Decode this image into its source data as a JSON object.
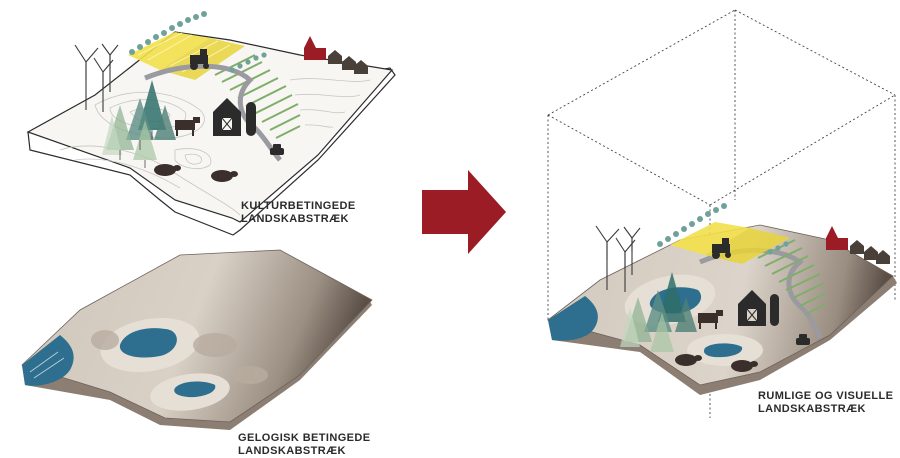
{
  "labels": {
    "cultural": [
      "KULTURBETINGEDE",
      "LANDSKABSTRÆK"
    ],
    "geological": [
      "GELOGISK BETINGEDE",
      "LANDSKABSTRÆK"
    ],
    "spatial": [
      "RUMLIGE OG VISUELLE",
      "LANDSKABSTRÆK"
    ]
  },
  "colors": {
    "arrow": "#9b1c24",
    "water": "#2e6e8e",
    "terrain_light": "#e4dcd2",
    "terrain_dark": "#5b5048",
    "field_yellow": "#f2e04a",
    "field_green": "#7fae6a",
    "road": "#9a9aa0",
    "church": "#9b1c24"
  },
  "icons": [
    "wind-turbine-icon",
    "tractor-icon",
    "barn-icon",
    "silo-icon",
    "cow-icon",
    "pig-icon",
    "car-icon",
    "church-icon",
    "house-icon",
    "tree-icon",
    "arrow-icon"
  ]
}
